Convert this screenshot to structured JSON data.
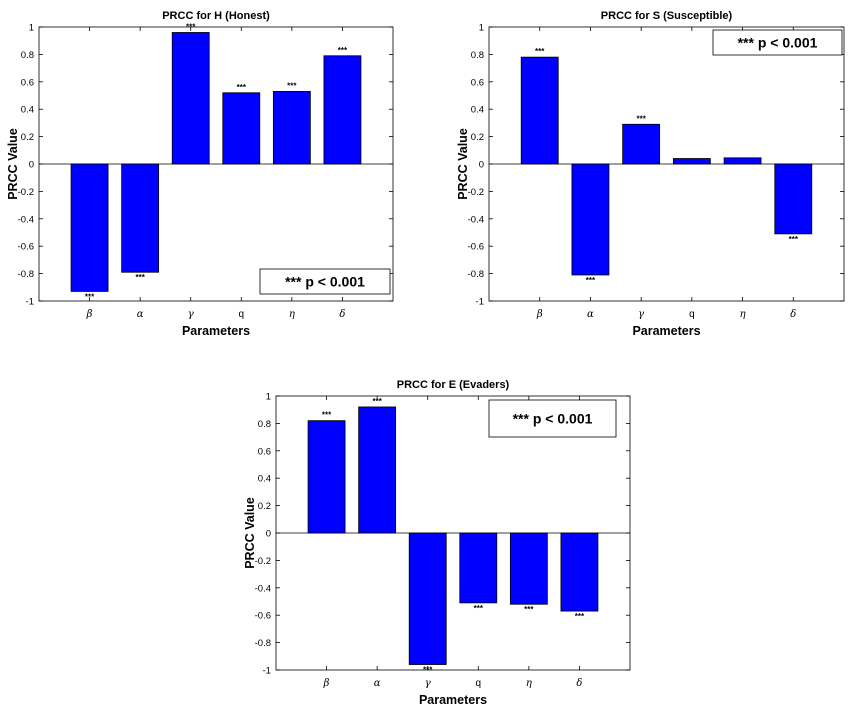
{
  "colors": {
    "bar": "#0000ff",
    "axis": "#000000",
    "background": "#ffffff"
  },
  "chart_data": [
    {
      "type": "bar",
      "title": "PRCC for H (Honest)",
      "xlabel": "Parameters",
      "ylabel": "PRCC Value",
      "ylim": [
        -1,
        1
      ],
      "yticks": [
        "-1",
        "-0.8",
        "-0.6",
        "-0.4",
        "-0.2",
        "0",
        "0.2",
        "0.4",
        "0.6",
        "0.8",
        "1"
      ],
      "categories": [
        "β",
        "α",
        "γ",
        "q",
        "η",
        "δ"
      ],
      "values": [
        -0.93,
        -0.79,
        0.96,
        0.52,
        0.53,
        0.79
      ],
      "significance": [
        "***",
        "***",
        "***",
        "***",
        "***",
        "***"
      ],
      "legend": "*** p < 0.001",
      "legend_position": "bottom-right"
    },
    {
      "type": "bar",
      "title": "PRCC for S (Susceptible)",
      "xlabel": "Parameters",
      "ylabel": "PRCC Value",
      "ylim": [
        -1,
        1
      ],
      "yticks": [
        "-1",
        "-0.8",
        "-0.6",
        "-0.4",
        "-0.2",
        "0",
        "0.2",
        "0.4",
        "0.6",
        "0.8",
        "1"
      ],
      "categories": [
        "β",
        "α",
        "γ",
        "q",
        "η",
        "δ"
      ],
      "values": [
        0.78,
        -0.81,
        0.29,
        0.04,
        0.045,
        -0.51
      ],
      "significance": [
        "***",
        "***",
        "***",
        "",
        "",
        "***"
      ],
      "legend": "*** p < 0.001",
      "legend_position": "top-right"
    },
    {
      "type": "bar",
      "title": "PRCC for E (Evaders)",
      "xlabel": "Parameters",
      "ylabel": "PRCC Value",
      "ylim": [
        -1,
        1
      ],
      "yticks": [
        "-1",
        "-0.8",
        "-0.6",
        "-0.4",
        "-0.2",
        "0",
        "0.2",
        "0.4",
        "0.6",
        "0.8",
        "1"
      ],
      "categories": [
        "β",
        "α",
        "γ",
        "q",
        "η",
        "δ"
      ],
      "values": [
        0.82,
        0.92,
        -0.96,
        -0.51,
        -0.52,
        -0.57
      ],
      "significance": [
        "***",
        "***",
        "***",
        "***",
        "***",
        "***"
      ],
      "legend": "*** p < 0.001",
      "legend_position": "top-right"
    }
  ]
}
